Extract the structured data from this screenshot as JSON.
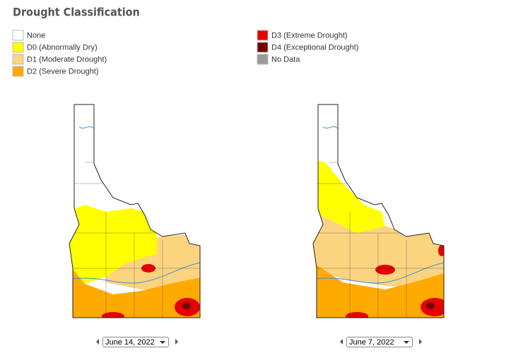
{
  "title": "Drought Classification",
  "legend": [
    {
      "label": "None",
      "color": "#ffffff"
    },
    {
      "label": "D0 (Abnormally Dry)",
      "color": "#ffff00"
    },
    {
      "label": "D1 (Moderate Drought)",
      "color": "#fcd37f"
    },
    {
      "label": "D2 (Severe Drought)",
      "color": "#ffaa00"
    },
    {
      "label": "D3 (Extreme Drought)",
      "color": "#e60000"
    },
    {
      "label": "D4 (Exceptional Drought)",
      "color": "#730000"
    },
    {
      "label": "No Data",
      "color": "#9b9b9b"
    }
  ],
  "maps": [
    {
      "date": "June 14, 2022"
    },
    {
      "date": "June 7, 2022"
    }
  ]
}
